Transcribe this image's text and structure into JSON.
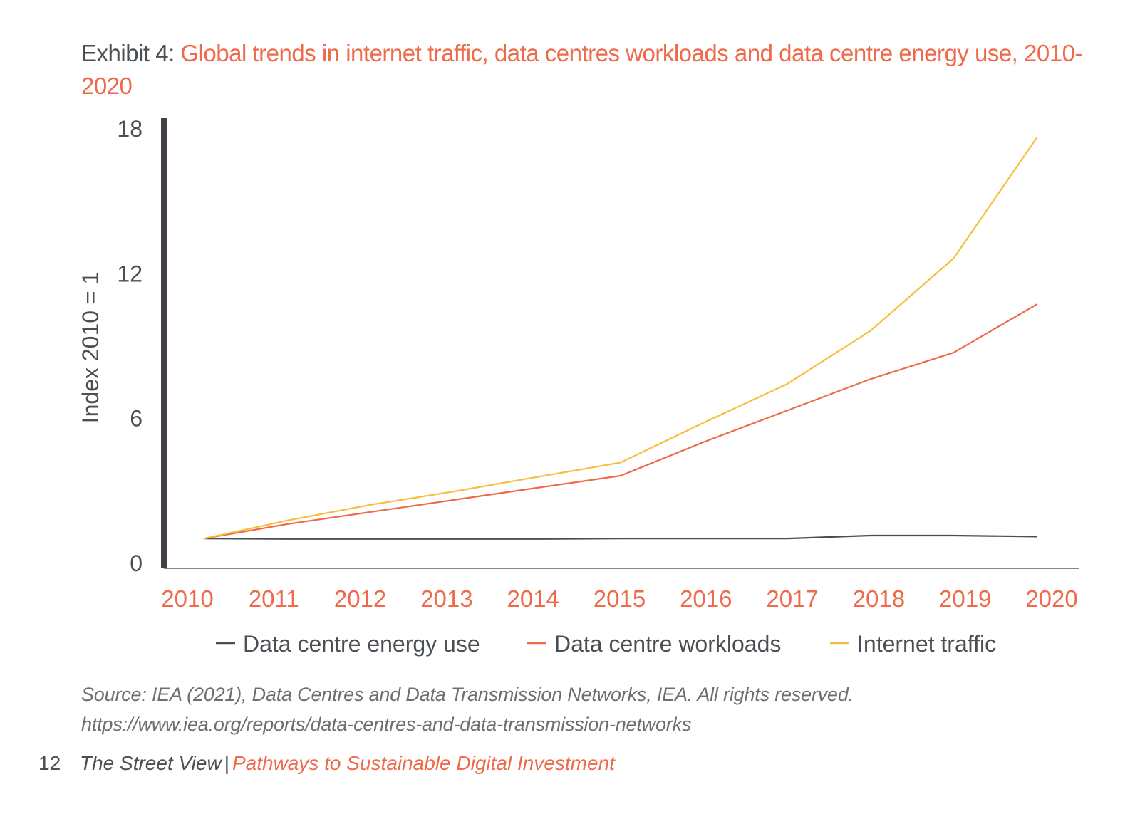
{
  "title": {
    "prefix": "Exhibit 4: ",
    "main": "Global trends in internet traffic, data centres workloads and data centre energy use, 2010-2020"
  },
  "chart_data": {
    "type": "line",
    "x": [
      "2010",
      "2011",
      "2012",
      "2013",
      "2014",
      "2015",
      "2016",
      "2017",
      "2018",
      "2019",
      "2020"
    ],
    "ylabel": "Index 2010 = 1",
    "ylim": [
      0,
      18
    ],
    "yticks": [
      "0",
      "6",
      "12",
      "18"
    ],
    "grid": false,
    "legend_position": "bottom",
    "series": [
      {
        "name": "Data centre energy use",
        "color": "#4a4f54",
        "values": [
          1.0,
          0.98,
          0.98,
          0.98,
          0.98,
          1.0,
          1.0,
          1.0,
          1.12,
          1.12,
          1.08
        ]
      },
      {
        "name": "Data centre workloads",
        "color": "#ee6a4a",
        "values": [
          1.0,
          1.6,
          2.1,
          2.6,
          3.1,
          3.6,
          5.0,
          6.3,
          7.6,
          8.7,
          10.7
        ]
      },
      {
        "name": "Internet traffic",
        "color": "#f8bd3e",
        "values": [
          1.0,
          1.75,
          2.4,
          2.95,
          3.55,
          4.15,
          5.8,
          7.4,
          9.6,
          12.6,
          17.6
        ]
      }
    ]
  },
  "source": {
    "line1": "Source: IEA (2021), Data Centres and Data Transmission Networks, IEA.  All rights reserved.",
    "line2": "https://www.iea.org/reports/data-centres-and-data-transmission-networks"
  },
  "footer": {
    "page_number": "12",
    "publication": "The Street View",
    "separator": "|",
    "series_title": "Pathways to Sustainable Digital Investment"
  },
  "colors": {
    "accent": "#ee6a4a",
    "axis": "#3f4347",
    "energy": "#4a4f54",
    "workloads": "#ee6a4a",
    "traffic": "#f8bd3e"
  }
}
